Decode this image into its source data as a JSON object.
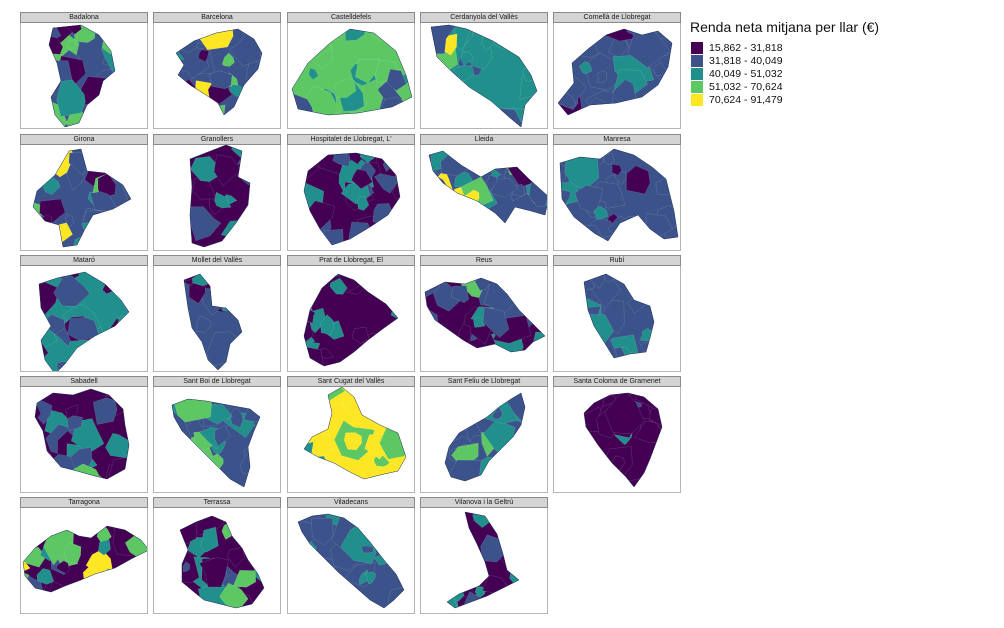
{
  "legend": {
    "title": "Renda neta mitjana per llar (€)",
    "items": [
      {
        "label": "15,862 - 31,818",
        "color": "#440154"
      },
      {
        "label": "31,818 - 40,049",
        "color": "#3b528b"
      },
      {
        "label": "40,049 - 51,032",
        "color": "#21908c"
      },
      {
        "label": "51,032 - 70,624",
        "color": "#5dc863"
      },
      {
        "label": "70,624 - 91,479",
        "color": "#fde725"
      }
    ]
  },
  "panels": [
    {
      "name": "Badalona",
      "icon": "badalona-map",
      "shares": [
        0.25,
        0.4,
        0.1,
        0.25,
        0
      ]
    },
    {
      "name": "Barcelona",
      "icon": "barcelona-map",
      "shares": [
        0.2,
        0.3,
        0.25,
        0.15,
        0.1
      ]
    },
    {
      "name": "Castelldefels",
      "icon": "castelldefels-map",
      "shares": [
        0,
        0.1,
        0.3,
        0.6,
        0
      ]
    },
    {
      "name": "Cerdanyola del Vallès",
      "icon": "cerdanyola-map",
      "shares": [
        0,
        0.15,
        0.65,
        0.1,
        0.1
      ]
    },
    {
      "name": "Cornellà de Llobregat",
      "icon": "cornella-map",
      "shares": [
        0.05,
        0.7,
        0.25,
        0,
        0
      ]
    },
    {
      "name": "Girona",
      "icon": "girona-map",
      "shares": [
        0.2,
        0.45,
        0.2,
        0.05,
        0.1
      ]
    },
    {
      "name": "Granollers",
      "icon": "granollers-map",
      "shares": [
        0.5,
        0.2,
        0.3,
        0,
        0
      ]
    },
    {
      "name": "Hospitalet de Llobregat, L'",
      "icon": "hospitalet-map",
      "shares": [
        0.4,
        0.35,
        0.25,
        0,
        0
      ]
    },
    {
      "name": "Lleida",
      "icon": "lleida-map",
      "shares": [
        0.2,
        0.35,
        0.3,
        0.1,
        0.05
      ]
    },
    {
      "name": "Manresa",
      "icon": "manresa-map",
      "shares": [
        0.1,
        0.6,
        0.3,
        0,
        0
      ]
    },
    {
      "name": "Mataró",
      "icon": "mataro-map",
      "shares": [
        0.3,
        0.3,
        0.4,
        0,
        0
      ]
    },
    {
      "name": "Mollet del Vallès",
      "icon": "mollet-map",
      "shares": [
        0.25,
        0.55,
        0.2,
        0,
        0
      ]
    },
    {
      "name": "Prat de Llobregat, El",
      "icon": "prat-map",
      "shares": [
        0.4,
        0.2,
        0.4,
        0,
        0
      ]
    },
    {
      "name": "Reus",
      "icon": "reus-map",
      "shares": [
        0.3,
        0.3,
        0.25,
        0.15,
        0
      ]
    },
    {
      "name": "Rubí",
      "icon": "rubi-map",
      "shares": [
        0,
        0.6,
        0.4,
        0,
        0
      ]
    },
    {
      "name": "Sabadell",
      "icon": "sabadell-map",
      "shares": [
        0.5,
        0.25,
        0.15,
        0.1,
        0
      ]
    },
    {
      "name": "Sant Boi de Llobregat",
      "icon": "santboi-map",
      "shares": [
        0,
        0.6,
        0.25,
        0.15,
        0
      ]
    },
    {
      "name": "Sant Cugat del Vallès",
      "icon": "santcugat-map",
      "shares": [
        0,
        0,
        0.15,
        0.35,
        0.5
      ]
    },
    {
      "name": "Sant Feliu de Llobregat",
      "icon": "santfeliu-map",
      "shares": [
        0,
        0.6,
        0.3,
        0.1,
        0
      ]
    },
    {
      "name": "Santa Coloma de Gramenet",
      "icon": "santacoloma-map",
      "shares": [
        0.7,
        0.2,
        0.1,
        0,
        0
      ]
    },
    {
      "name": "Tarragona",
      "icon": "tarragona-map",
      "shares": [
        0.4,
        0.1,
        0.05,
        0.4,
        0.05
      ]
    },
    {
      "name": "Terrassa",
      "icon": "terrassa-map",
      "shares": [
        0.35,
        0.25,
        0.35,
        0.05,
        0
      ]
    },
    {
      "name": "Viladecans",
      "icon": "viladecans-map",
      "shares": [
        0,
        0.8,
        0.2,
        0,
        0
      ]
    },
    {
      "name": "Vilanova i la Geltrú",
      "icon": "vilanova-map",
      "shares": [
        0.55,
        0.2,
        0.25,
        0,
        0
      ]
    }
  ]
}
